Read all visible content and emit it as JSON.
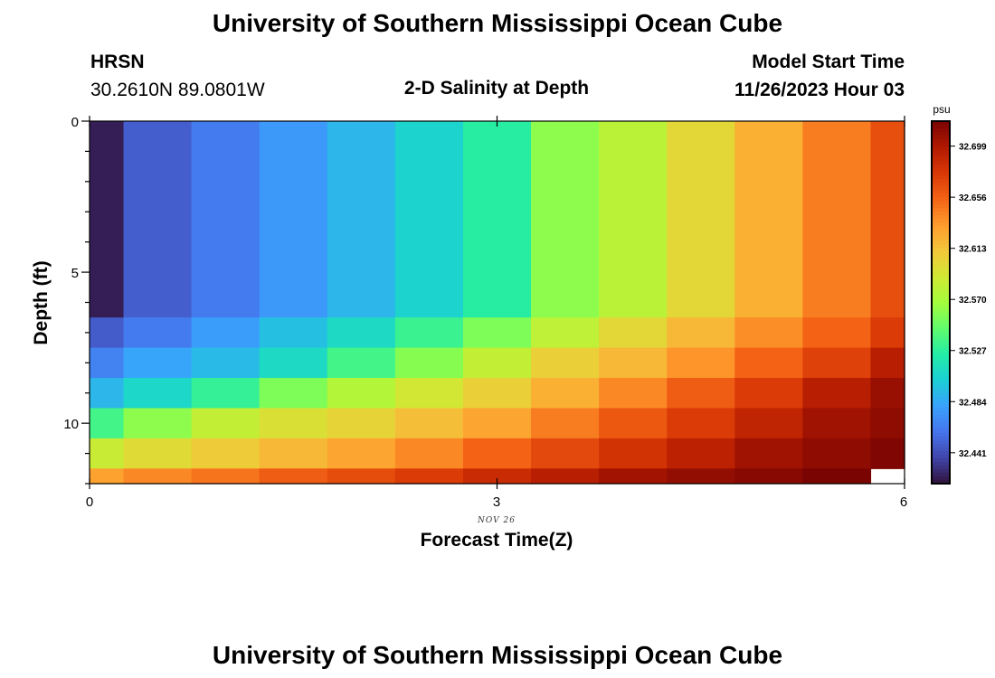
{
  "page": {
    "title": "University of Southern Mississippi Ocean Cube",
    "footer_title": "University of Southern Mississippi Ocean Cube",
    "station": "HRSN",
    "coords": "30.2610N  89.0801W",
    "plot_title": "2-D Salinity at Depth",
    "model_start_label": "Model Start Time",
    "model_start_value": "11/26/2023 Hour 03"
  },
  "chart_data": {
    "type": "heatmap",
    "title": "2-D Salinity at Depth",
    "xlabel": "Forecast Time(Z)",
    "ylabel": "Depth (ft)",
    "x_date_label": "NOV 26",
    "xlim": [
      0,
      6
    ],
    "ylim": [
      0,
      12
    ],
    "x_ticks": [
      "0",
      "3",
      "6"
    ],
    "y_ticks": [
      "0",
      "5",
      "10"
    ],
    "colorbar": {
      "unit": "psu",
      "tick_labels": [
        "32.699",
        "32.656",
        "32.613",
        "32.570",
        "32.527",
        "32.484",
        "32.441"
      ],
      "vmin": 32.415,
      "vmax": 32.72,
      "colors": [
        "#30123b",
        "#4145ab",
        "#4675ed",
        "#39a2fc",
        "#1bcfd4",
        "#24eca6",
        "#61fc6c",
        "#a4fc3b",
        "#d1e834",
        "#f3c63a",
        "#fe9b2d",
        "#f36315",
        "#d93806",
        "#b11901",
        "#7a0402"
      ]
    },
    "x_edges": [
      0,
      0.25,
      0.75,
      1.25,
      1.75,
      2.25,
      2.75,
      3.25,
      3.75,
      4.25,
      4.75,
      5.25,
      5.75,
      6
    ],
    "y_edges": [
      0,
      6.5,
      7.5,
      8.5,
      9.5,
      10.5,
      11.5,
      12
    ],
    "values": [
      [
        32.42,
        32.448,
        32.462,
        32.476,
        32.49,
        32.505,
        32.525,
        32.56,
        32.578,
        32.6,
        32.622,
        32.645,
        32.665
      ],
      [
        32.447,
        32.462,
        32.478,
        32.495,
        32.51,
        32.532,
        32.555,
        32.58,
        32.6,
        32.618,
        32.638,
        32.655,
        32.675
      ],
      [
        32.465,
        32.482,
        32.492,
        32.51,
        32.535,
        32.558,
        32.582,
        32.605,
        32.618,
        32.635,
        32.655,
        32.672,
        32.695
      ],
      [
        32.49,
        32.508,
        32.53,
        32.555,
        32.575,
        32.59,
        32.605,
        32.622,
        32.64,
        32.658,
        32.675,
        32.695,
        32.708
      ],
      [
        32.535,
        32.56,
        32.582,
        32.595,
        32.603,
        32.615,
        32.628,
        32.645,
        32.66,
        32.675,
        32.69,
        32.705,
        32.712
      ],
      [
        32.585,
        32.598,
        32.608,
        32.618,
        32.628,
        32.64,
        32.655,
        32.668,
        32.68,
        32.692,
        32.705,
        32.712,
        32.718
      ],
      [
        32.63,
        32.64,
        32.648,
        32.658,
        32.666,
        32.675,
        32.685,
        32.695,
        32.704,
        32.71,
        32.715,
        32.72,
        null
      ]
    ]
  }
}
